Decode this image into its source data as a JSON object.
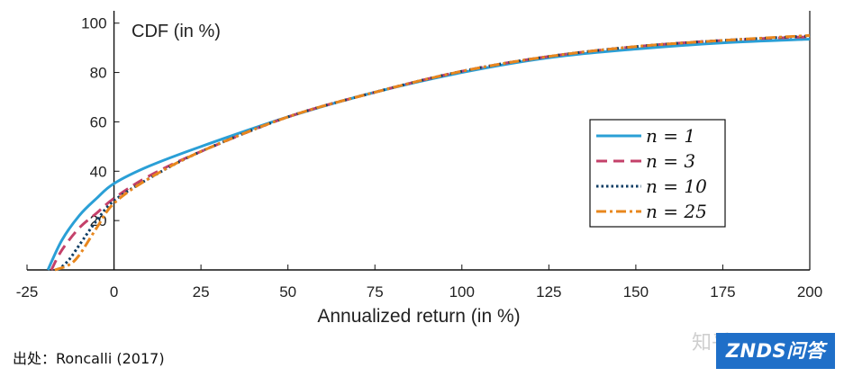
{
  "chart_data": {
    "type": "line",
    "title": "CDF (in %)",
    "xlabel": "Annualized return (in %)",
    "ylabel": "",
    "xlim": [
      -25,
      200
    ],
    "ylim": [
      0,
      105
    ],
    "xticks": [
      "-25",
      "0",
      "25",
      "50",
      "75",
      "100",
      "125",
      "150",
      "175",
      "200"
    ],
    "yticks": [
      "20",
      "40",
      "60",
      "80",
      "100"
    ],
    "legend_position": "right",
    "series": [
      {
        "name": "n = 1",
        "color": "#2a9fd6",
        "style": "solid",
        "x": [
          -19,
          -15,
          -10,
          -5,
          0,
          10,
          25,
          50,
          75,
          100,
          125,
          150,
          175,
          200
        ],
        "y": [
          0,
          12,
          22,
          29,
          35,
          42,
          50,
          62,
          72,
          80,
          86,
          89.5,
          92,
          93.5
        ]
      },
      {
        "name": "n = 3",
        "color": "#c4416a",
        "style": "dashed",
        "x": [
          -18,
          -15,
          -10,
          -5,
          0,
          10,
          25,
          50,
          75,
          100,
          125,
          150,
          175,
          200
        ],
        "y": [
          0,
          8,
          17,
          23,
          29,
          38,
          48,
          62,
          72,
          80.5,
          86.5,
          90.5,
          93,
          94.5
        ]
      },
      {
        "name": "n = 10",
        "color": "#0d3c63",
        "style": "dotted",
        "x": [
          -16,
          -13,
          -10,
          -5,
          0,
          10,
          25,
          50,
          75,
          100,
          125,
          150,
          175,
          200
        ],
        "y": [
          0,
          4,
          10,
          20,
          28,
          37,
          48,
          62,
          72,
          80.5,
          86.5,
          90.5,
          93,
          94.8
        ]
      },
      {
        "name": "n = 25",
        "color": "#e8871e",
        "style": "dashdot",
        "x": [
          -17,
          -13,
          -10,
          -5,
          0,
          10,
          25,
          50,
          75,
          100,
          125,
          150,
          175,
          200
        ],
        "y": [
          0,
          2,
          6,
          17,
          27,
          37,
          48,
          62,
          72,
          80.5,
          86.5,
          90.5,
          93,
          95
        ]
      }
    ]
  },
  "caption": "出处：Roncalli (2017)",
  "watermark": "知乎",
  "brand": "ZNDS问答"
}
